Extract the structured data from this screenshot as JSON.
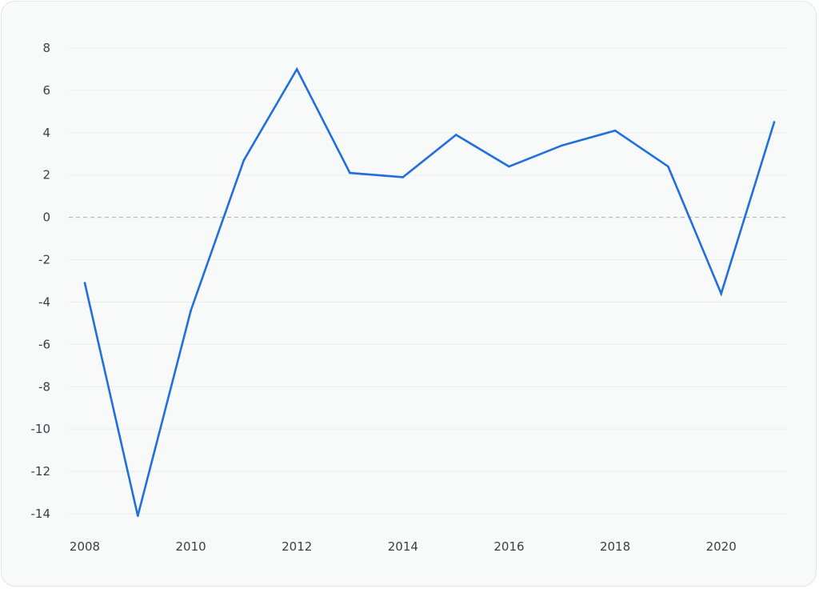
{
  "chart_data": {
    "type": "line",
    "title": "",
    "xlabel": "",
    "ylabel": "",
    "x": [
      2008,
      2009,
      2010,
      2011,
      2012,
      2013,
      2014,
      2015,
      2016,
      2017,
      2018,
      2019,
      2020,
      2021
    ],
    "series": [
      {
        "color": "#1f6fde",
        "values": [
          -3.1,
          -14.1,
          -4.4,
          2.7,
          7.0,
          2.1,
          1.9,
          3.9,
          2.4,
          3.4,
          4.1,
          2.4,
          -3.6,
          4.5
        ]
      }
    ],
    "ylim": [
      -14,
      8
    ],
    "yticks": [
      8,
      6,
      4,
      2,
      0,
      -2,
      -4,
      -6,
      -8,
      -10,
      -12,
      -14
    ],
    "xticks": [
      2008,
      2010,
      2012,
      2014,
      2016,
      2018,
      2020
    ],
    "ytick_labels": [
      "8",
      "6",
      "4",
      "2",
      "0",
      "-2",
      "-4",
      "-6",
      "-8",
      "-10",
      "-12",
      "-14"
    ],
    "xtick_labels": [
      "2008",
      "2010",
      "2012",
      "2014",
      "2016",
      "2018",
      "2020"
    ],
    "grid": true,
    "zero_line": "dashed",
    "legend": "none"
  }
}
